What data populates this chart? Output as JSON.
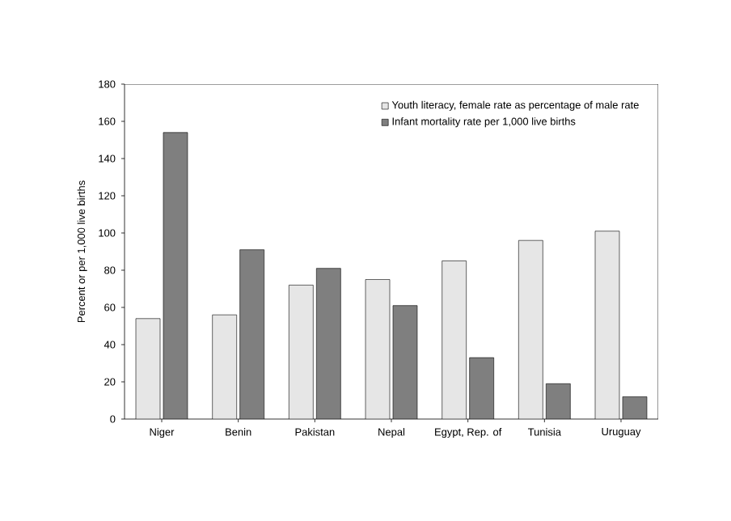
{
  "chart_data": {
    "type": "bar",
    "ylabel": "Percent or per 1,000 live births",
    "categories": [
      "Niger",
      "Benin",
      "Pakistan",
      "Nepal",
      "Egypt, Rep. of",
      "Tunisia",
      "Uruguay"
    ],
    "series": [
      {
        "name": "Youth literacy, female rate as percentage of male rate",
        "color": "#e6e6e6",
        "values": [
          54,
          56,
          72,
          75,
          85,
          96,
          101
        ]
      },
      {
        "name": "Infant mortality rate per 1,000 live births",
        "color": "#7f7f7f",
        "values": [
          154,
          91,
          81,
          61,
          33,
          19,
          12
        ]
      }
    ],
    "ylim": [
      0,
      180
    ],
    "yticks": [
      0,
      20,
      40,
      60,
      80,
      100,
      120,
      140,
      160,
      180
    ],
    "grid": false,
    "legend": "top right"
  }
}
